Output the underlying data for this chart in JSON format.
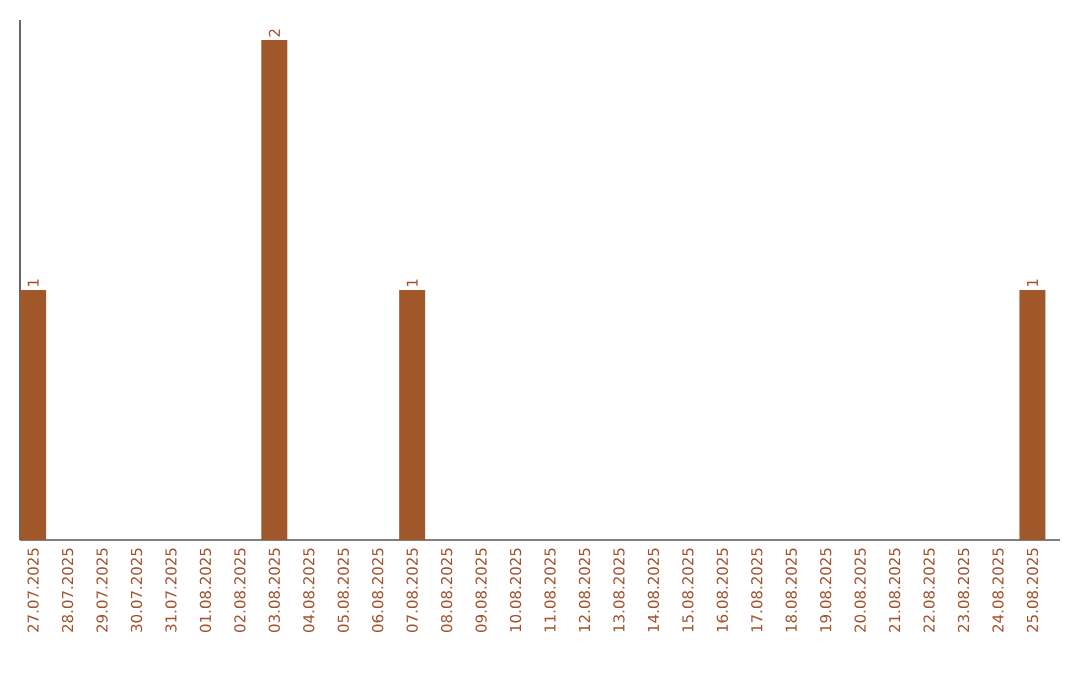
{
  "chart_data": {
    "type": "bar",
    "categories": [
      "27.07.2025",
      "28.07.2025",
      "29.07.2025",
      "30.07.2025",
      "31.07.2025",
      "01.08.2025",
      "02.08.2025",
      "03.08.2025",
      "04.08.2025",
      "05.08.2025",
      "06.08.2025",
      "07.08.2025",
      "08.08.2025",
      "09.08.2025",
      "10.08.2025",
      "11.08.2025",
      "12.08.2025",
      "13.08.2025",
      "14.08.2025",
      "15.08.2025",
      "16.08.2025",
      "17.08.2025",
      "18.08.2025",
      "19.08.2025",
      "20.08.2025",
      "21.08.2025",
      "22.08.2025",
      "23.08.2025",
      "24.08.2025",
      "25.08.2025"
    ],
    "values": [
      1,
      0,
      0,
      0,
      0,
      0,
      0,
      2,
      0,
      0,
      0,
      1,
      0,
      0,
      0,
      0,
      0,
      0,
      0,
      0,
      0,
      0,
      0,
      0,
      0,
      0,
      0,
      0,
      0,
      1
    ],
    "value_labels": [
      "1",
      null,
      null,
      null,
      null,
      null,
      null,
      "2",
      null,
      null,
      null,
      "1",
      null,
      null,
      null,
      null,
      null,
      null,
      null,
      null,
      null,
      null,
      null,
      null,
      null,
      null,
      null,
      null,
      null,
      "1"
    ],
    "color": "#a0572a"
  }
}
